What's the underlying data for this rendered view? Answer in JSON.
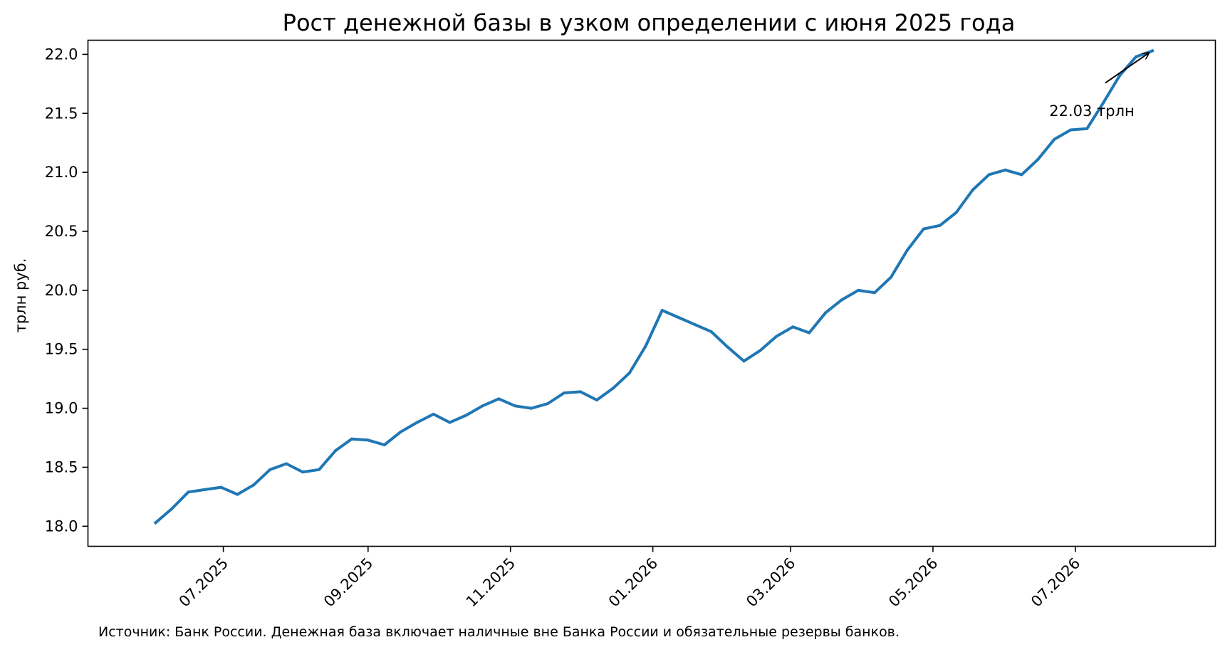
{
  "chart_data": {
    "type": "line",
    "title": "Рост денежной базы в узком определении с июня 2025 года",
    "xlabel": "",
    "ylabel": "трлн руб.",
    "ylim": [
      17.83,
      22.12
    ],
    "xlim": [
      "2025-05-04",
      "2026-08-30"
    ],
    "yticks": [
      "18.0",
      "18.5",
      "19.0",
      "19.5",
      "20.0",
      "20.5",
      "21.0",
      "21.5",
      "22.0"
    ],
    "xticks": [
      {
        "date": "2025-07-01",
        "label": "07.2025"
      },
      {
        "date": "2025-09-01",
        "label": "09.2025"
      },
      {
        "date": "2025-11-01",
        "label": "11.2025"
      },
      {
        "date": "2026-01-01",
        "label": "01.2026"
      },
      {
        "date": "2026-03-01",
        "label": "03.2026"
      },
      {
        "date": "2026-05-01",
        "label": "05.2026"
      },
      {
        "date": "2026-07-01",
        "label": "07.2026"
      }
    ],
    "grid": false,
    "color": "#1f77b4",
    "series": [
      {
        "name": "",
        "x": [
          "2025-06-02",
          "2025-06-09",
          "2025-06-16",
          "2025-06-23",
          "2025-06-30",
          "2025-07-07",
          "2025-07-14",
          "2025-07-21",
          "2025-07-28",
          "2025-08-04",
          "2025-08-11",
          "2025-08-18",
          "2025-08-25",
          "2025-09-01",
          "2025-09-08",
          "2025-09-15",
          "2025-09-22",
          "2025-09-29",
          "2025-10-06",
          "2025-10-13",
          "2025-10-20",
          "2025-10-27",
          "2025-11-03",
          "2025-11-10",
          "2025-11-17",
          "2025-11-24",
          "2025-12-01",
          "2025-12-08",
          "2025-12-15",
          "2025-12-22",
          "2025-12-29",
          "2026-01-05",
          "2026-01-12",
          "2026-01-19",
          "2026-01-26",
          "2026-02-02",
          "2026-02-09",
          "2026-02-16",
          "2026-02-23",
          "2026-03-02",
          "2026-03-09",
          "2026-03-16",
          "2026-03-23",
          "2026-03-30",
          "2026-04-06",
          "2026-04-13",
          "2026-04-20",
          "2026-04-27",
          "2026-05-04",
          "2026-05-11",
          "2026-05-18",
          "2026-05-25",
          "2026-06-01",
          "2026-06-08",
          "2026-06-15",
          "2026-06-22",
          "2026-06-29",
          "2026-07-06",
          "2026-07-13",
          "2026-07-20",
          "2026-07-27",
          "2026-08-03"
        ],
        "values": [
          18.03,
          18.15,
          18.29,
          18.31,
          18.33,
          18.27,
          18.35,
          18.48,
          18.53,
          18.46,
          18.48,
          18.64,
          18.74,
          18.73,
          18.69,
          18.8,
          18.88,
          18.95,
          18.88,
          18.94,
          19.02,
          19.08,
          19.02,
          19.0,
          19.04,
          19.13,
          19.14,
          19.07,
          19.17,
          19.3,
          19.53,
          19.83,
          19.77,
          19.71,
          19.65,
          19.52,
          19.4,
          19.49,
          19.61,
          19.69,
          19.64,
          19.81,
          19.92,
          20.0,
          19.98,
          20.11,
          20.34,
          20.52,
          20.55,
          20.66,
          20.85,
          20.98,
          21.02,
          20.98,
          21.11,
          21.28,
          21.36,
          21.37,
          21.59,
          21.82,
          21.98,
          22.03
        ]
      }
    ],
    "annotations": [
      {
        "text": "22.03 трлн",
        "x": "2026-08-03",
        "y": 22.03
      }
    ],
    "note": "Источник: Банк России. Денежная база включает наличные вне Банка России и обязательные резервы банков."
  }
}
